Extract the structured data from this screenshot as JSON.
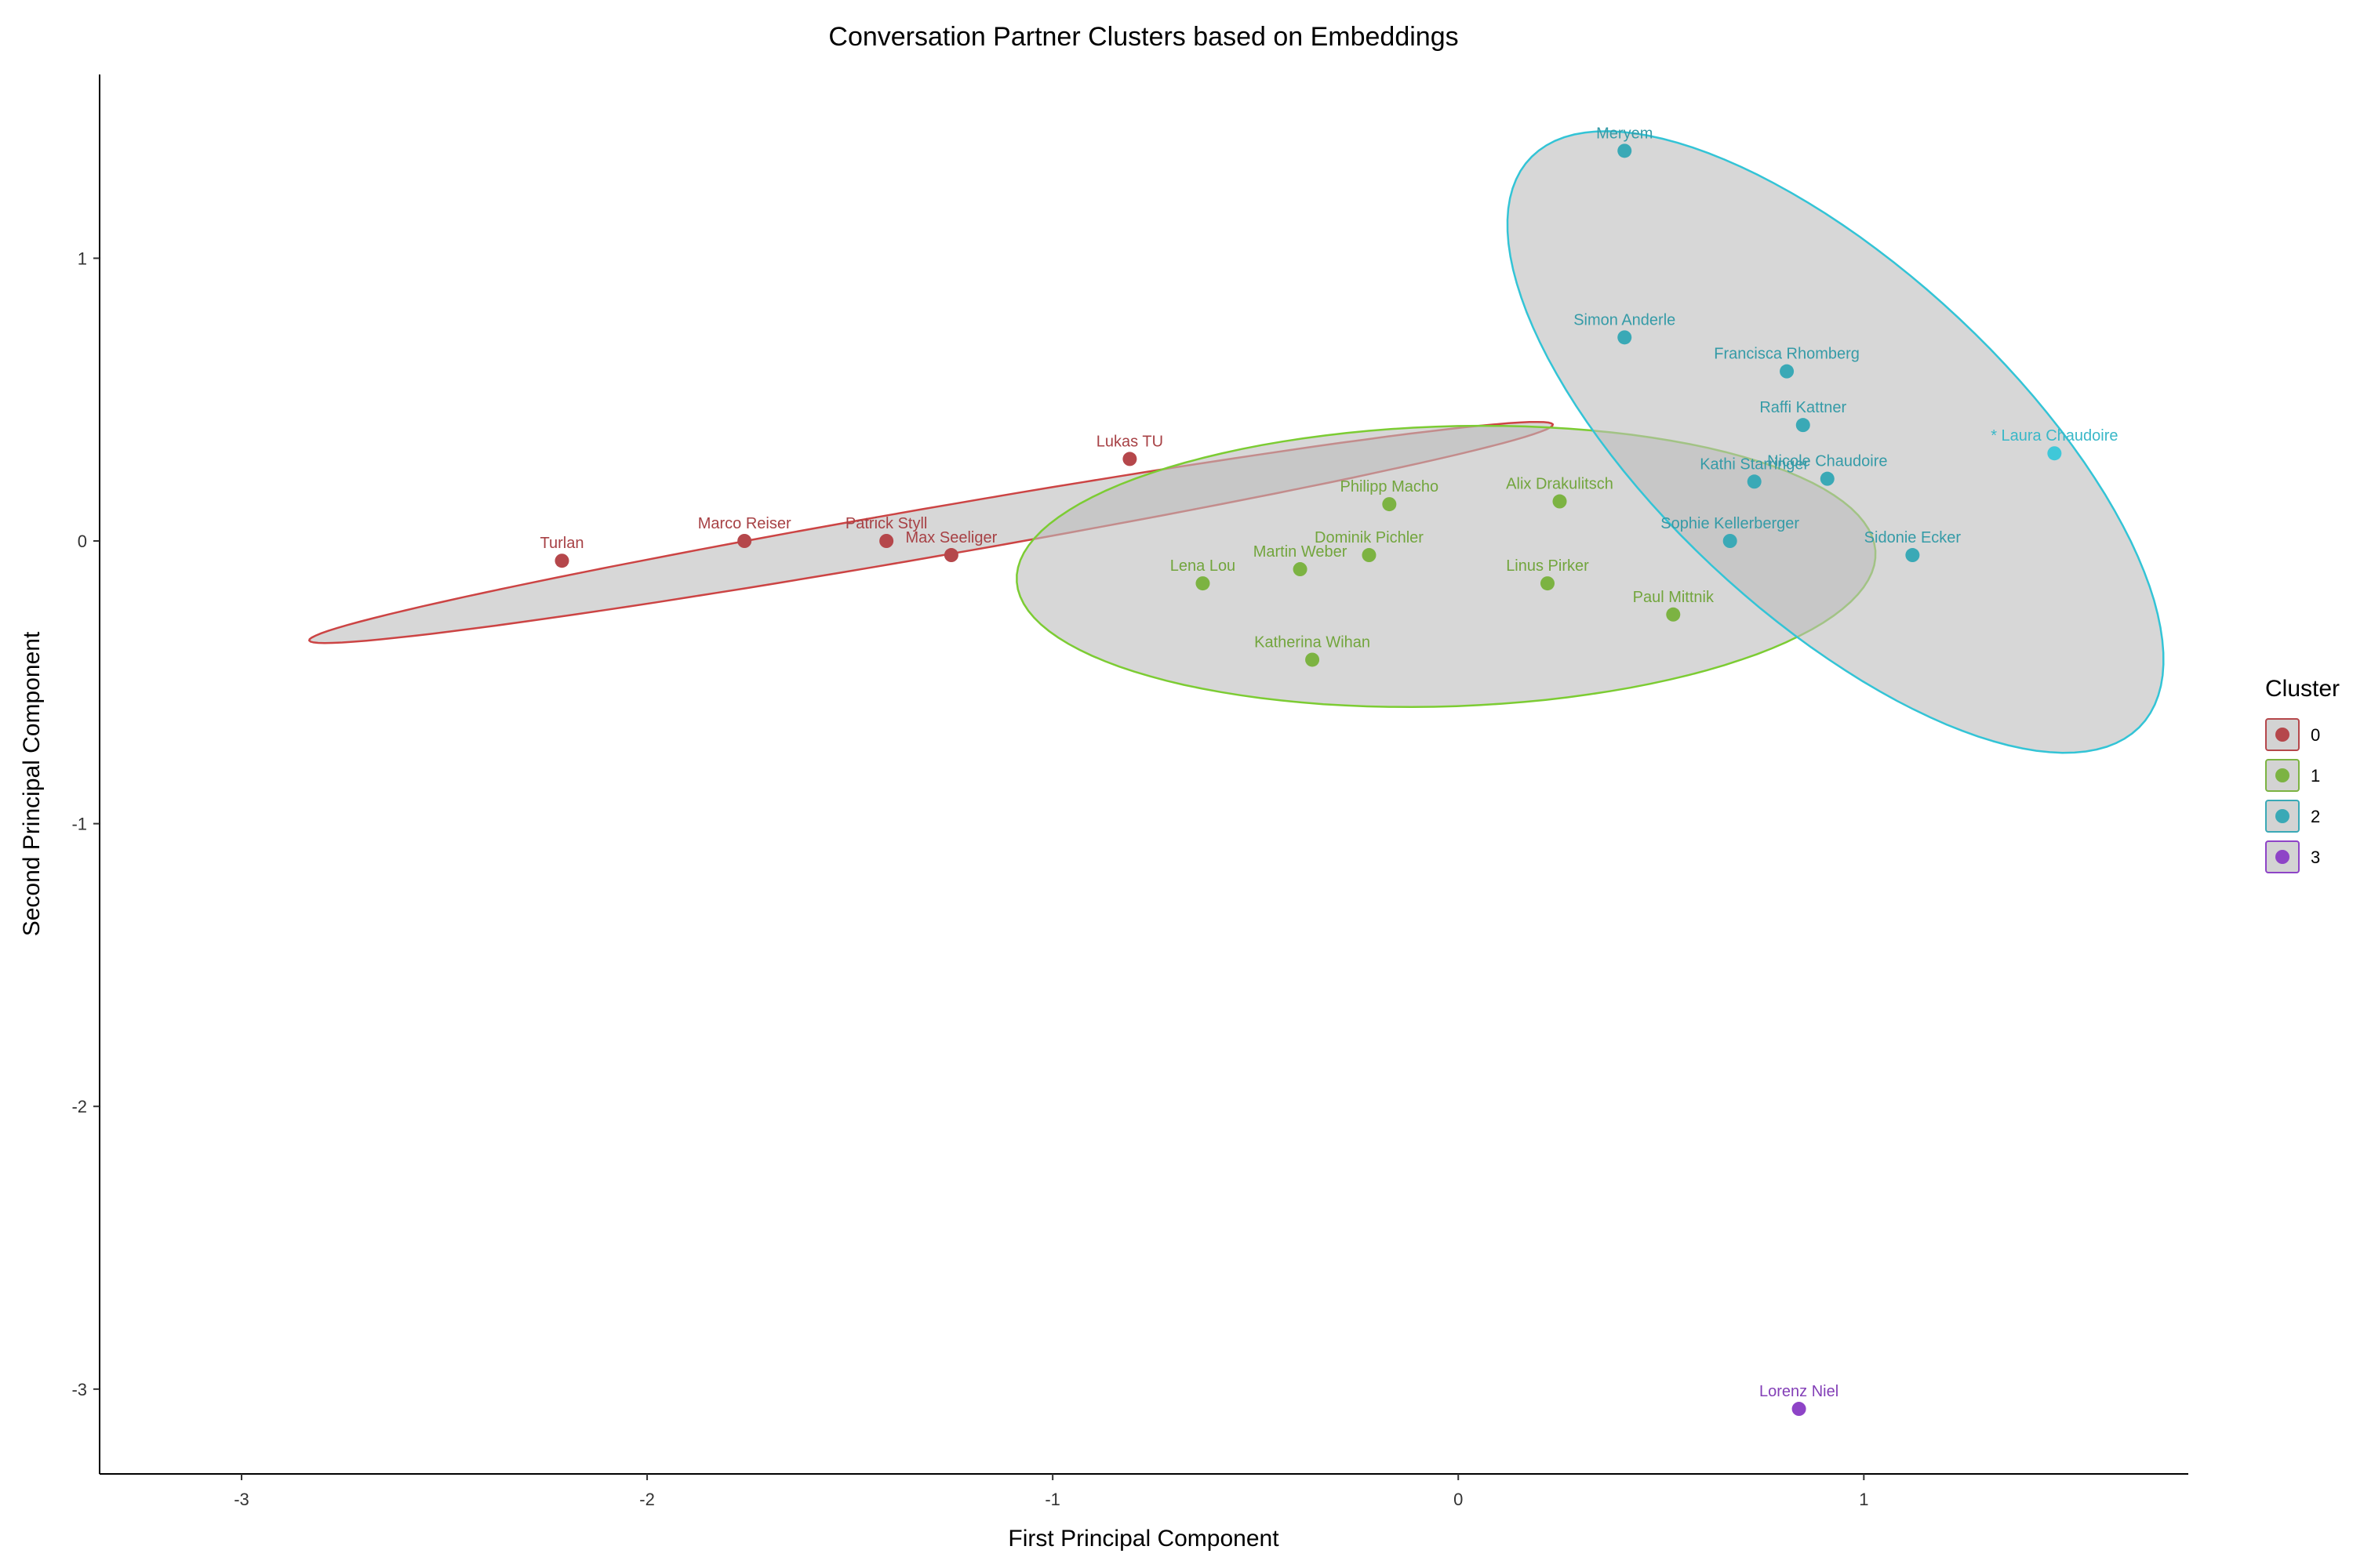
{
  "chart_data": {
    "type": "scatter",
    "title": "Conversation Partner Clusters based on Embeddings",
    "xlabel": "First Principal Component",
    "ylabel": "Second Principal Component",
    "xlim": [
      -3.35,
      1.8
    ],
    "ylim": [
      -3.3,
      1.65
    ],
    "x_ticks": [
      -3,
      -2,
      -1,
      0,
      1
    ],
    "y_ticks": [
      -3,
      -2,
      -1,
      0,
      1
    ],
    "grid": false,
    "legend": {
      "title": "Cluster",
      "position": "right",
      "entries": [
        {
          "label": "0",
          "color": "#b5474b"
        },
        {
          "label": "1",
          "color": "#7cb342"
        },
        {
          "label": "2",
          "color": "#3aa9b6"
        },
        {
          "label": "3",
          "color": "#8e44c7"
        }
      ]
    },
    "series": [
      {
        "name": "0",
        "color": "#b5474b",
        "points": [
          {
            "label": "Turlan",
            "x": -2.21,
            "y": -0.07
          },
          {
            "label": "Marco Reiser",
            "x": -1.76,
            "y": 0.0
          },
          {
            "label": "Patrick Styll",
            "x": -1.41,
            "y": 0.0
          },
          {
            "label": "Max Seeliger",
            "x": -1.25,
            "y": -0.05
          },
          {
            "label": "Lukas TU",
            "x": -0.81,
            "y": 0.29
          }
        ]
      },
      {
        "name": "1",
        "color": "#7cb342",
        "points": [
          {
            "label": "Lena Lou",
            "x": -0.63,
            "y": -0.15
          },
          {
            "label": "Martin Weber",
            "x": -0.39,
            "y": -0.1
          },
          {
            "label": "Dominik Pichler",
            "x": -0.22,
            "y": -0.05
          },
          {
            "label": "Philipp Macho",
            "x": -0.17,
            "y": 0.13
          },
          {
            "label": "Katherina Wihan",
            "x": -0.36,
            "y": -0.42
          },
          {
            "label": "Alix Drakulitsch",
            "x": 0.25,
            "y": 0.14
          },
          {
            "label": "Linus Pirker",
            "x": 0.22,
            "y": -0.15
          },
          {
            "label": "Paul Mittnik",
            "x": 0.53,
            "y": -0.26
          }
        ]
      },
      {
        "name": "2",
        "color": "#3aa9b6",
        "points": [
          {
            "label": "Meryem",
            "x": 0.41,
            "y": 1.38
          },
          {
            "label": "Simon Anderle",
            "x": 0.41,
            "y": 0.72
          },
          {
            "label": "Francisca Rhomberg",
            "x": 0.81,
            "y": 0.6
          },
          {
            "label": "Raffi Kattner",
            "x": 0.85,
            "y": 0.41
          },
          {
            "label": "Kathi Starringer",
            "x": 0.73,
            "y": 0.21
          },
          {
            "label": "Nicole Chaudoire",
            "x": 0.91,
            "y": 0.22
          },
          {
            "label": "Sophie Kellerberger",
            "x": 0.67,
            "y": 0.0
          },
          {
            "label": "Sidonie Ecker",
            "x": 1.12,
            "y": -0.05
          },
          {
            "label": "* Laura Chaudoire",
            "x": 1.47,
            "y": 0.31,
            "highlight_color": "#3fc8d9"
          }
        ]
      },
      {
        "name": "3",
        "color": "#8e44c7",
        "points": [
          {
            "label": "Lorenz Niel",
            "x": 0.84,
            "y": -3.07
          }
        ]
      }
    ],
    "ellipses": [
      {
        "cluster": "0",
        "stroke": "#cc4444",
        "fill": "#bdbdbd",
        "cx": -1.3,
        "cy": 0.03,
        "rx": 1.58,
        "ry": 0.085,
        "angle_deg": 14.0
      },
      {
        "cluster": "1",
        "stroke": "#7ccc33",
        "fill": "#bdbdbd",
        "cx": -0.03,
        "cy": -0.09,
        "rx": 1.06,
        "ry": 0.495,
        "angle_deg": 3.0
      },
      {
        "cluster": "2",
        "stroke": "#33c4d6",
        "fill": "#bdbdbd",
        "cx": 0.93,
        "cy": 0.35,
        "rx": 1.27,
        "ry": 0.5,
        "angle_deg": -57.0
      }
    ]
  }
}
